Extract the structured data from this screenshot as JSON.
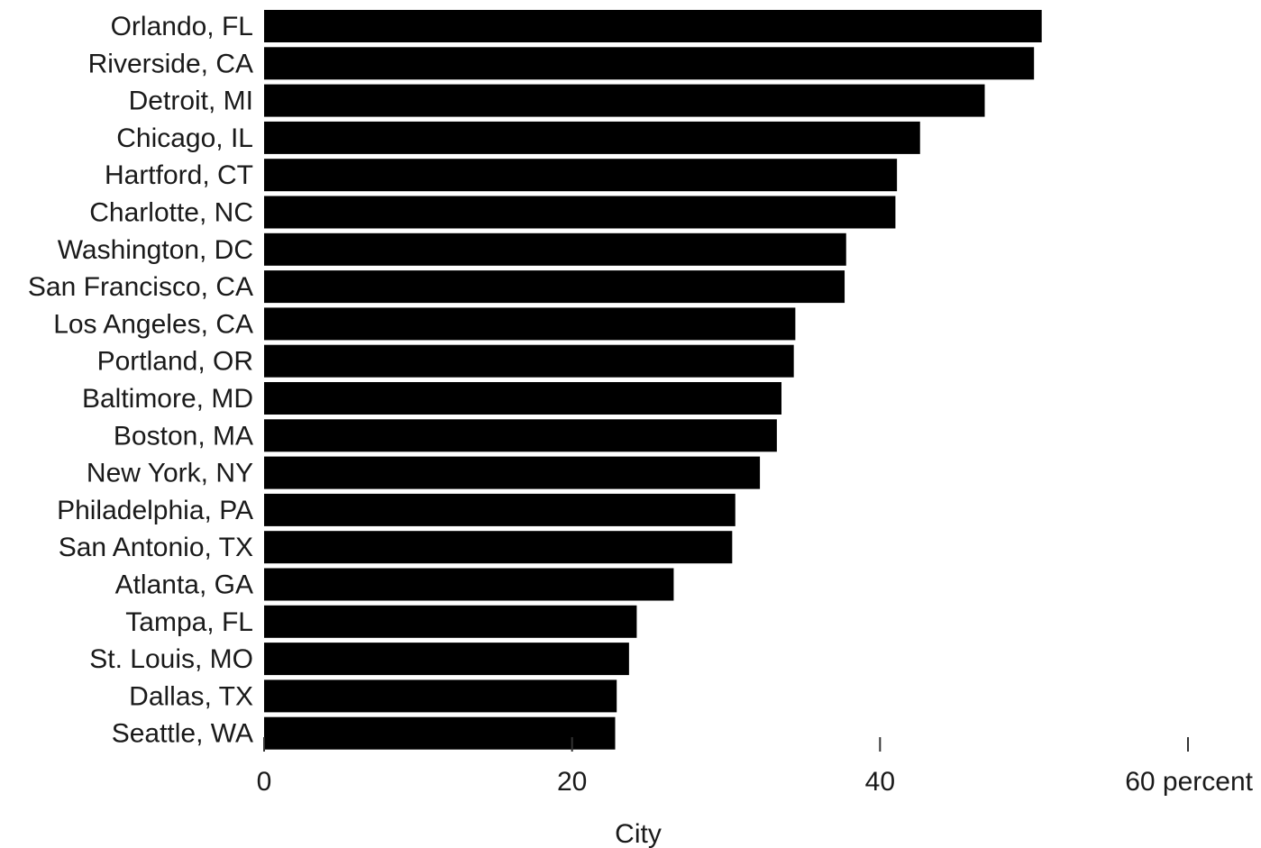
{
  "chart_data": {
    "type": "bar",
    "orientation": "horizontal",
    "categories": [
      "Orlando, FL",
      "Riverside, CA",
      "Detroit, MI",
      "Chicago, IL",
      "Hartford, CT",
      "Charlotte, NC",
      "Washington, DC",
      "San Francisco, CA",
      "Los Angeles, CA",
      "Portland, OR",
      "Baltimore, MD",
      "Boston, MA",
      "New York, NY",
      "Philadelphia, PA",
      "San Antonio, TX",
      "Atlanta, GA",
      "Tampa, FL",
      "St. Louis, MO",
      "Dallas, TX",
      "Seattle, WA"
    ],
    "values": [
      50.5,
      50.0,
      46.8,
      42.6,
      41.1,
      41.0,
      37.8,
      37.7,
      34.5,
      34.4,
      33.6,
      33.3,
      32.2,
      30.6,
      30.4,
      26.6,
      24.2,
      23.7,
      22.9,
      22.8
    ],
    "xlim": [
      0,
      60
    ],
    "xticks": [
      0,
      20,
      40,
      60
    ],
    "xtick_labels": [
      "0",
      "20",
      "40",
      "60 percent"
    ],
    "xlabel": "City",
    "ylabel": "",
    "title": "",
    "grid": false,
    "bar_color": "#000000"
  }
}
